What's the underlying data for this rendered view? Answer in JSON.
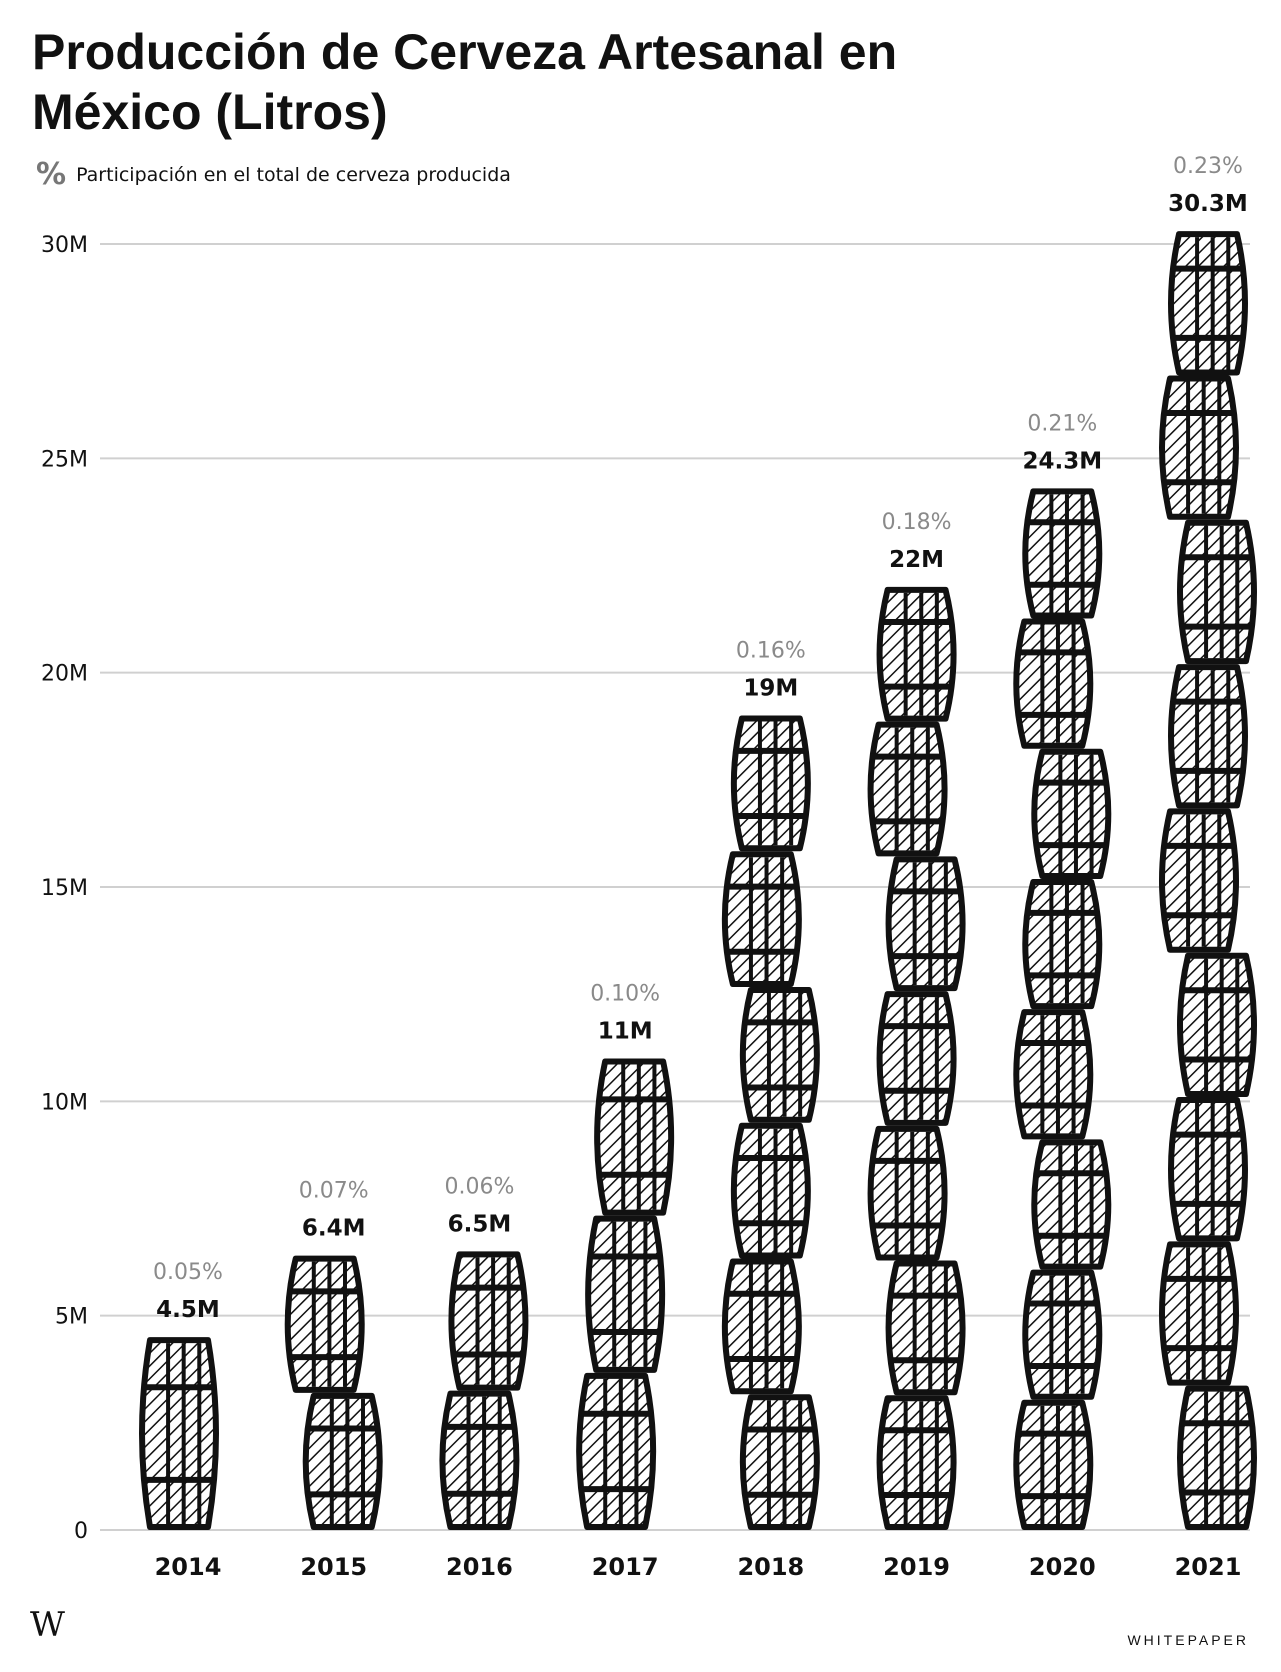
{
  "title_line1": "Producción de Cerveza Artesanal en",
  "title_line2": "México (Litros)",
  "legend": {
    "symbol": "%",
    "text": "Participación en el total de cerveza producida"
  },
  "footer": {
    "logo": "W",
    "brand": "WHITEPAPER"
  },
  "colors": {
    "ink": "#111111",
    "grid": "#d0d0d0",
    "percent": "#8a8a8a",
    "barrel_fill": "#ffffff"
  },
  "chart_data": {
    "type": "bar",
    "categories": [
      "2014",
      "2015",
      "2016",
      "2017",
      "2018",
      "2019",
      "2020",
      "2021"
    ],
    "values": [
      4.5,
      6.4,
      6.5,
      11,
      19,
      22,
      24.3,
      30.3
    ],
    "value_labels": [
      "4.5M",
      "6.4M",
      "6.5M",
      "11M",
      "19M",
      "22M",
      "24.3M",
      "30.3M"
    ],
    "share_labels": [
      "0.05%",
      "0.07%",
      "0.06%",
      "0.10%",
      "0.16%",
      "0.18%",
      "0.21%",
      "0.23%"
    ],
    "unit": "millions of liters",
    "ylim": [
      0,
      30
    ],
    "yticks": [
      0,
      5,
      10,
      15,
      20,
      25,
      30
    ],
    "ytick_labels": [
      "0",
      "5M",
      "10M",
      "15M",
      "20M",
      "25M",
      "30M"
    ],
    "grid": true,
    "mark": "stacked barrel icons"
  }
}
